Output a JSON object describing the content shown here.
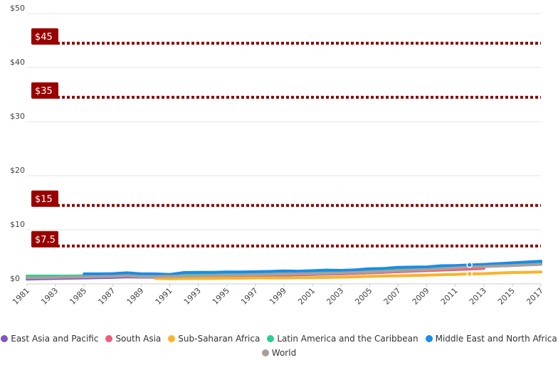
{
  "chart_data": {
    "type": "line",
    "x": [
      1981,
      1982,
      1983,
      1984,
      1985,
      1986,
      1987,
      1988,
      1989,
      1990,
      1991,
      1992,
      1993,
      1994,
      1995,
      1996,
      1997,
      1998,
      1999,
      2000,
      2001,
      2002,
      2003,
      2004,
      2005,
      2006,
      2007,
      2008,
      2009,
      2010,
      2011,
      2012,
      2013,
      2014,
      2015,
      2016,
      2017
    ],
    "x_tick_labels": [
      "1981",
      "1983",
      "1985",
      "1987",
      "1989",
      "1991",
      "1993",
      "1995",
      "1997",
      "1999",
      "2001",
      "2003",
      "2005",
      "2007",
      "2009",
      "2011",
      "2013",
      "2015",
      "2017"
    ],
    "y_tick_labels": [
      "$0",
      "$10",
      "$20",
      "$30",
      "$40",
      "$50"
    ],
    "ylim": [
      0,
      50
    ],
    "grid": true,
    "thresholds": [
      {
        "label": "$45",
        "value": 44.5
      },
      {
        "label": "$35",
        "value": 34.5
      },
      {
        "label": "$15",
        "value": 14.5
      },
      {
        "label": "$7.5",
        "value": 7.0
      }
    ],
    "series": [
      {
        "name": "East Asia and Pacific",
        "color": "#7e57c2",
        "values": [
          0.9,
          0.95,
          1.0,
          1.05,
          1.1,
          1.15,
          1.2,
          1.3,
          1.25,
          1.25,
          1.3,
          1.35,
          1.4,
          1.45,
          1.5,
          1.55,
          1.55,
          1.6,
          1.65,
          1.7,
          1.75,
          1.8,
          1.85,
          1.95,
          2.05,
          2.15,
          2.3,
          2.45,
          2.6,
          2.8,
          3.0,
          3.2,
          3.4,
          3.6,
          3.75,
          3.9,
          4.0
        ]
      },
      {
        "name": "South Asia",
        "color": "#ef5d75",
        "values": [
          null,
          null,
          null,
          null,
          null,
          null,
          null,
          null,
          null,
          1.35,
          1.4,
          1.45,
          1.5,
          1.5,
          1.55,
          1.55,
          1.6,
          1.65,
          1.7,
          1.75,
          1.8,
          1.85,
          1.9,
          1.95,
          2.05,
          2.15,
          2.25,
          2.35,
          2.45,
          2.55,
          2.65,
          2.75,
          2.85,
          null,
          null,
          null,
          null
        ]
      },
      {
        "name": "Sub-Saharan Africa",
        "color": "#f8b32b",
        "values": [
          null,
          null,
          null,
          null,
          null,
          null,
          null,
          null,
          null,
          1.0,
          0.95,
          1.0,
          1.0,
          1.0,
          1.05,
          1.05,
          1.1,
          1.1,
          1.1,
          1.15,
          1.15,
          1.2,
          1.25,
          1.3,
          1.4,
          1.45,
          1.5,
          1.55,
          1.6,
          1.7,
          1.75,
          1.85,
          1.9,
          2.0,
          2.1,
          2.15,
          2.2
        ]
      },
      {
        "name": "Latin America and the Caribbean",
        "color": "#2bcf8f",
        "values": [
          1.45,
          1.45,
          1.45,
          1.45,
          1.5,
          1.5,
          1.55,
          1.6,
          1.55,
          1.55,
          1.6,
          1.65,
          1.7,
          1.75,
          1.8,
          1.85,
          1.9,
          1.9,
          1.95,
          2.0,
          2.05,
          2.1,
          2.15,
          2.25,
          2.35,
          2.45,
          2.6,
          2.7,
          2.8,
          2.95,
          3.1,
          3.25,
          3.4,
          3.5,
          3.6,
          3.7,
          3.75
        ]
      },
      {
        "name": "Middle East and North Africa",
        "color": "#1a8ce8",
        "values": [
          null,
          null,
          null,
          null,
          1.85,
          1.85,
          1.9,
          2.05,
          1.85,
          1.85,
          1.75,
          2.1,
          2.15,
          2.15,
          2.2,
          2.2,
          2.25,
          2.3,
          2.4,
          2.35,
          2.45,
          2.55,
          2.5,
          2.6,
          2.8,
          2.85,
          3.05,
          3.1,
          3.15,
          3.35,
          3.4,
          3.5,
          3.6,
          3.75,
          3.9,
          4.05,
          4.2
        ]
      },
      {
        "name": "World",
        "color": "#a89f9b",
        "values": [
          1.1,
          1.15,
          1.2,
          1.25,
          1.3,
          1.35,
          1.4,
          1.5,
          1.35,
          1.35,
          1.4,
          1.45,
          1.5,
          1.55,
          1.6,
          1.65,
          1.7,
          1.75,
          1.8,
          1.85,
          1.9,
          1.95,
          2.0,
          2.1,
          2.2,
          2.3,
          2.45,
          2.55,
          2.65,
          2.8,
          2.95,
          3.1,
          3.2,
          3.3,
          3.4,
          3.5,
          3.6
        ]
      }
    ]
  }
}
